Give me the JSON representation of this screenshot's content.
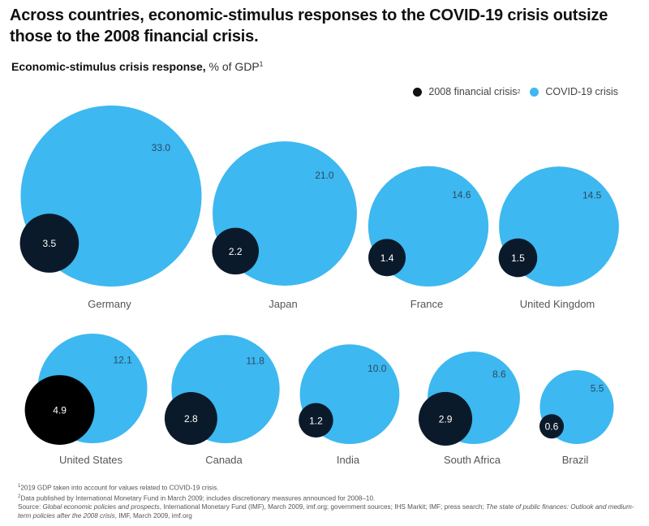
{
  "title": "Across countries, economic-stimulus responses to the COVID-19 crisis outsize those to the 2008 financial crisis.",
  "subtitle": {
    "bold": "Economic-stimulus crisis response,",
    "light": " % of GDP",
    "footnote_mark": "1"
  },
  "legend": {
    "items": [
      {
        "label": "2008 financial crisis",
        "footnote_mark": "2",
        "color": "#111111"
      },
      {
        "label": "COVID-19 crisis",
        "footnote_mark": "",
        "color": "#3db8f0"
      }
    ]
  },
  "colors": {
    "covid": "#3db8f0",
    "crisis_2008": "#0b1a2a",
    "crisis_2008_us": "#000000",
    "value_text_covid": "#2a4a66",
    "value_text_2008": "#ffffff",
    "country_label": "#555555"
  },
  "chart_data": {
    "type": "bubble",
    "title": "Economic-stimulus crisis response, % of GDP",
    "unit": "% of GDP",
    "series": [
      {
        "name": "2008 financial crisis",
        "key": "crisis_2008"
      },
      {
        "name": "COVID-19 crisis",
        "key": "covid"
      }
    ],
    "categories": [
      "Germany",
      "Japan",
      "France",
      "United Kingdom",
      "United States",
      "Canada",
      "India",
      "South Africa",
      "Brazil"
    ],
    "values": [
      {
        "country": "Germany",
        "covid": 33.0,
        "crisis_2008": 3.5,
        "covid_label": "33.0",
        "crisis_2008_label": "3.5"
      },
      {
        "country": "Japan",
        "covid": 21.0,
        "crisis_2008": 2.2,
        "covid_label": "21.0",
        "crisis_2008_label": "2.2"
      },
      {
        "country": "France",
        "covid": 14.6,
        "crisis_2008": 1.4,
        "covid_label": "14.6",
        "crisis_2008_label": "1.4"
      },
      {
        "country": "United Kingdom",
        "covid": 14.5,
        "crisis_2008": 1.5,
        "covid_label": "14.5",
        "crisis_2008_label": "1.5"
      },
      {
        "country": "United States",
        "covid": 12.1,
        "crisis_2008": 4.9,
        "covid_label": "12.1",
        "crisis_2008_label": "4.9"
      },
      {
        "country": "Canada",
        "covid": 11.8,
        "crisis_2008": 2.8,
        "covid_label": "11.8",
        "crisis_2008_label": "2.8"
      },
      {
        "country": "India",
        "covid": 10.0,
        "crisis_2008": 1.2,
        "covid_label": "10.0",
        "crisis_2008_label": "1.2"
      },
      {
        "country": "South Africa",
        "covid": 8.6,
        "crisis_2008": 2.9,
        "covid_label": "8.6",
        "crisis_2008_label": "2.9"
      },
      {
        "country": "Brazil",
        "covid": 5.5,
        "crisis_2008": 0.6,
        "covid_label": "5.5",
        "crisis_2008_label": "0.6"
      }
    ],
    "legend_position": "top-right",
    "grid": false
  },
  "footnotes": {
    "note1_mark": "1",
    "note1": "2019 GDP taken into account for values related to COVID-19 crisis.",
    "note2_mark": "2",
    "note2": "Data published by International Monetary Fund in March 2009; includes discretionary measures announced for 2008–10.",
    "source_prefix": "Source: ",
    "source_italic1": "Global economic policies and prospects",
    "source_mid": ", International Monetary Fund (IMF), March 2009, imf.org; government sources; IHS Markit; IMF; press search; ",
    "source_italic2": "The state of public finances: Outlook and medium-term policies after the 2008 crisis",
    "source_end": ", IMF, March 2009, imf.org"
  }
}
